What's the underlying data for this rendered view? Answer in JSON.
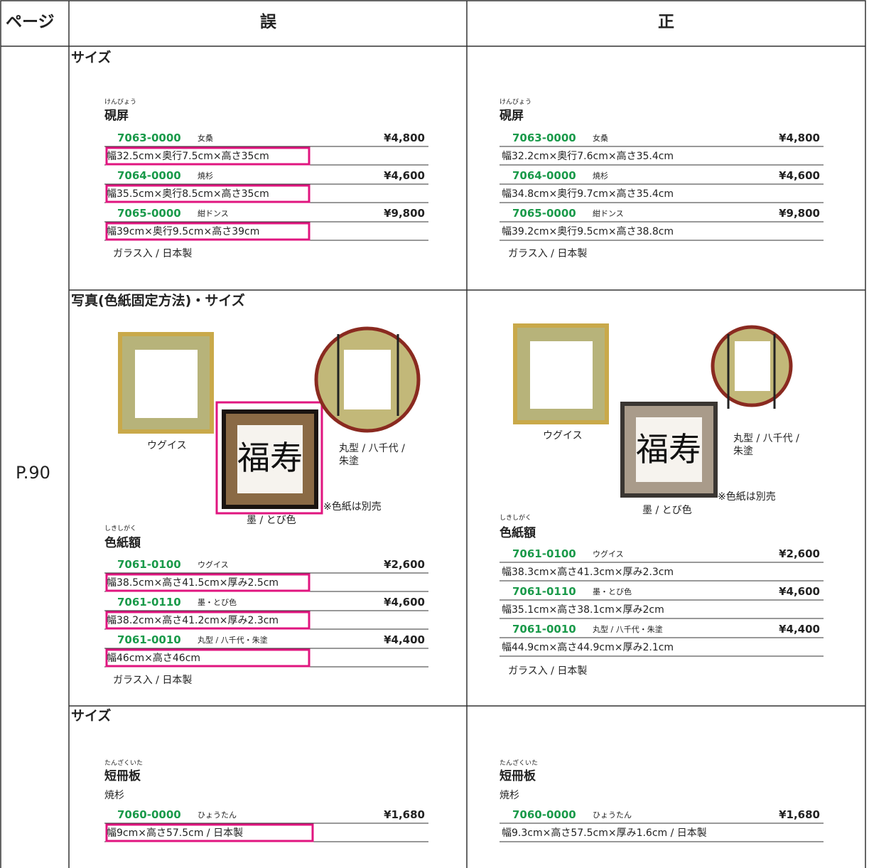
{
  "header": {
    "page": "ページ",
    "wrong": "誤",
    "correct": "正"
  },
  "page_label": "P.90",
  "sections": [
    {
      "title": "サイズ",
      "wrong": {
        "ruby": "けんびょう",
        "name": "硯屏",
        "items": [
          {
            "code": "7063-0000",
            "variant": "女桑",
            "price": "¥4,800",
            "size": "幅32.5cm×奥行7.5cm×高さ35cm"
          },
          {
            "code": "7064-0000",
            "variant": "焼杉",
            "price": "¥4,600",
            "size": "幅35.5cm×奥行8.5cm×高さ35cm"
          },
          {
            "code": "7065-0000",
            "variant": "紺ドンス",
            "price": "¥9,800",
            "size": "幅39cm×奥行9.5cm×高さ39cm"
          }
        ],
        "footer": "ガラス入 / 日本製"
      },
      "correct": {
        "ruby": "けんびょう",
        "name": "硯屏",
        "items": [
          {
            "code": "7063-0000",
            "variant": "女桑",
            "price": "¥4,800",
            "size": "幅32.2cm×奥行7.6cm×高さ35.4cm"
          },
          {
            "code": "7064-0000",
            "variant": "焼杉",
            "price": "¥4,600",
            "size": "幅34.8cm×奥行9.7cm×高さ35.4cm"
          },
          {
            "code": "7065-0000",
            "variant": "紺ドンス",
            "price": "¥9,800",
            "size": "幅39.2cm×奥行9.5cm×高さ38.8cm"
          }
        ],
        "footer": "ガラス入 / 日本製"
      }
    },
    {
      "title": "写真(色紙固定方法)・サイズ",
      "wrong": {
        "captions": [
          "ウグイス",
          "墨 / とび色",
          "丸型 / 八千代 / 朱塗"
        ],
        "image_note": "※色紙は別売",
        "ruby": "しきしがく",
        "name": "色紙額",
        "items": [
          {
            "code": "7061-0100",
            "variant": "ウグイス",
            "price": "¥2,600",
            "size": "幅38.5cm×高さ41.5cm×厚み2.5cm"
          },
          {
            "code": "7061-0110",
            "variant": "墨・とび色",
            "price": "¥4,600",
            "size": "幅38.2cm×高さ41.2cm×厚み2.3cm"
          },
          {
            "code": "7061-0010",
            "variant": "丸型 / 八千代・朱塗",
            "price": "¥4,400",
            "size": "幅46cm×高さ46cm"
          }
        ],
        "footer": "ガラス入 / 日本製"
      },
      "correct": {
        "captions": [
          "ウグイス",
          "墨 / とび色",
          "丸型 / 八千代 / 朱塗"
        ],
        "image_note": "※色紙は別売",
        "ruby": "しきしがく",
        "name": "色紙額",
        "items": [
          {
            "code": "7061-0100",
            "variant": "ウグイス",
            "price": "¥2,600",
            "size": "幅38.3cm×高さ41.3cm×厚み2.3cm"
          },
          {
            "code": "7061-0110",
            "variant": "墨・とび色",
            "price": "¥4,600",
            "size": "幅35.1cm×高さ38.1cm×厚み2cm"
          },
          {
            "code": "7061-0010",
            "variant": "丸型 / 八千代・朱塗",
            "price": "¥4,400",
            "size": "幅44.9cm×高さ44.9cm×厚み2.1cm"
          }
        ],
        "footer": "ガラス入 / 日本製"
      }
    },
    {
      "title": "サイズ",
      "wrong": {
        "ruby": "たんざくいた",
        "name": "短冊板",
        "note": "焼杉",
        "items": [
          {
            "code": "7060-0000",
            "variant": "ひょうたん",
            "price": "¥1,680",
            "size": "幅9cm×高さ57.5cm / 日本製"
          }
        ]
      },
      "correct": {
        "ruby": "たんざくいた",
        "name": "短冊板",
        "note": "焼杉",
        "items": [
          {
            "code": "7060-0000",
            "variant": "ひょうたん",
            "price": "¥1,680",
            "size": "幅9.3cm×高さ57.5cm×厚み1.6cm / 日本製"
          }
        ]
      }
    }
  ]
}
